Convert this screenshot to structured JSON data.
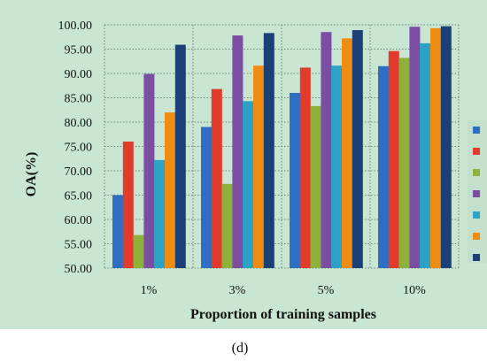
{
  "panel_label": "(d)",
  "colors": {
    "plot_background": "#c9e6d3",
    "grid": "#4a6b55",
    "series": [
      "#2e6fc4",
      "#e03b2b",
      "#8db23a",
      "#7b4ea3",
      "#2aa3c6",
      "#ef8c12",
      "#1d3f78"
    ]
  },
  "chart_data": {
    "type": "bar",
    "title": "",
    "xlabel": "Proportion of training samples",
    "ylabel": "OA(%)",
    "ylim": [
      50,
      100
    ],
    "yticks": [
      "50.00",
      "55.00",
      "60.00",
      "65.00",
      "70.00",
      "75.00",
      "80.00",
      "85.00",
      "90.00",
      "95.00",
      "100.00"
    ],
    "categories": [
      "1%",
      "3%",
      "5%",
      "10%"
    ],
    "grid": true,
    "legend_position": "right",
    "series": [
      {
        "values": [
          65.0,
          79.0,
          86.0,
          91.5
        ]
      },
      {
        "values": [
          76.0,
          86.8,
          91.2,
          94.6
        ]
      },
      {
        "values": [
          56.8,
          67.3,
          83.3,
          93.2
        ]
      },
      {
        "values": [
          89.9,
          97.8,
          98.5,
          99.6
        ]
      },
      {
        "values": [
          72.2,
          84.3,
          91.6,
          96.2
        ]
      },
      {
        "values": [
          82.0,
          91.6,
          97.2,
          99.3
        ]
      },
      {
        "values": [
          95.9,
          98.3,
          98.9,
          99.7
        ]
      }
    ]
  }
}
